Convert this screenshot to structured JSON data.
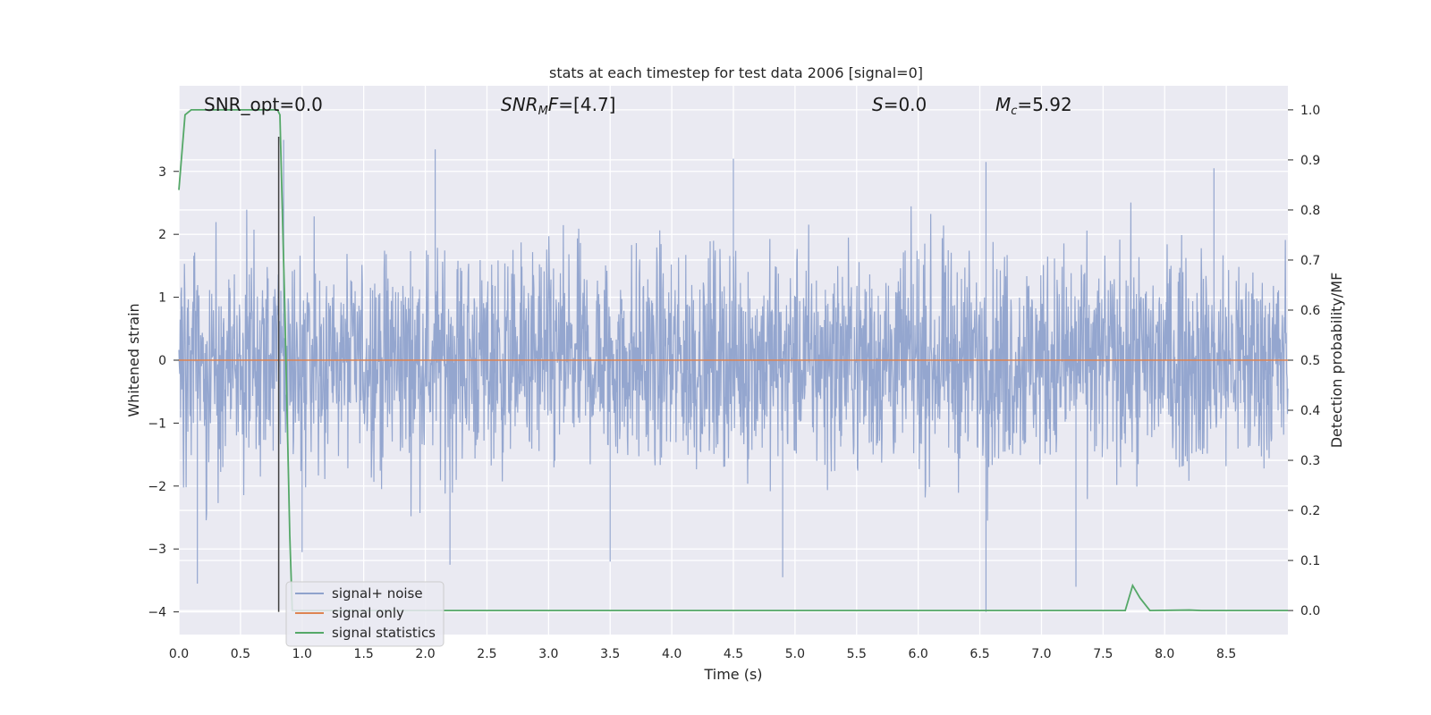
{
  "chart_data": {
    "type": "line",
    "title": "stats at each timestep for test data 2006 [signal=0]",
    "xlabel": "Time (s)",
    "ylabel": "Whitened strain",
    "y2label": "Detection probability/MF",
    "xlim": [
      0,
      9
    ],
    "ylim": [
      -4.36,
      4.36
    ],
    "y2lim": [
      -0.048,
      1.048
    ],
    "xticks": [
      "0.0",
      "0.5",
      "1.0",
      "1.5",
      "2.0",
      "2.5",
      "3.0",
      "3.5",
      "4.0",
      "4.5",
      "5.0",
      "5.5",
      "6.0",
      "6.5",
      "7.0",
      "7.5",
      "8.0",
      "8.5"
    ],
    "yticks": [
      "3",
      "2",
      "1",
      "0",
      "−1",
      "−2",
      "−3",
      "−4"
    ],
    "y2ticks": [
      "1.0",
      "0.9",
      "0.8",
      "0.7",
      "0.6",
      "0.5",
      "0.4",
      "0.3",
      "0.2",
      "0.1",
      "0.0"
    ],
    "grid": true,
    "legend_position": "lower-left",
    "series": [
      {
        "name": "signal+ noise",
        "color": "#8fa2cc",
        "axis": "left",
        "description_values": "dense whitened noise, roughly between -3.6 and 3.5",
        "peaks": [
          [
            0.15,
            -3.55
          ],
          [
            0.85,
            3.5
          ],
          [
            1.0,
            -3.05
          ],
          [
            2.08,
            3.35
          ],
          [
            2.2,
            -3.25
          ],
          [
            3.5,
            -3.2
          ],
          [
            4.5,
            3.2
          ],
          [
            4.9,
            -3.45
          ],
          [
            6.55,
            3.15
          ],
          [
            6.55,
            -4.0
          ],
          [
            7.28,
            -3.6
          ],
          [
            8.4,
            3.05
          ]
        ]
      },
      {
        "name": "signal only",
        "color": "#dd8452",
        "axis": "left",
        "x": [
          0,
          9
        ],
        "values": [
          0,
          0
        ]
      },
      {
        "name": "signal statistics",
        "color": "#55a868",
        "axis": "right",
        "x": [
          0,
          0.05,
          0.1,
          0.8,
          0.82,
          0.86,
          0.9,
          0.92,
          1.0,
          7.68,
          7.74,
          7.8,
          7.88,
          8.2,
          8.3,
          9
        ],
        "values": [
          0.84,
          0.99,
          1.0,
          1.0,
          0.99,
          0.6,
          0.15,
          0.0,
          0.0,
          0.0,
          0.05,
          0.025,
          0.0,
          0.001,
          0.0,
          0.0
        ]
      }
    ],
    "vline": {
      "x": 0.81,
      "y_from": -4,
      "y_to": 3.55,
      "color": "#404040"
    },
    "annotations": [
      {
        "text": "SNR_opt=0.0",
        "x": 0.2
      },
      {
        "text": "SNR_MF=[4.7]",
        "x": 2.6
      },
      {
        "text": "S=0.0",
        "x": 5.6
      },
      {
        "text": "M_c=5.92",
        "x": 6.6
      }
    ]
  }
}
